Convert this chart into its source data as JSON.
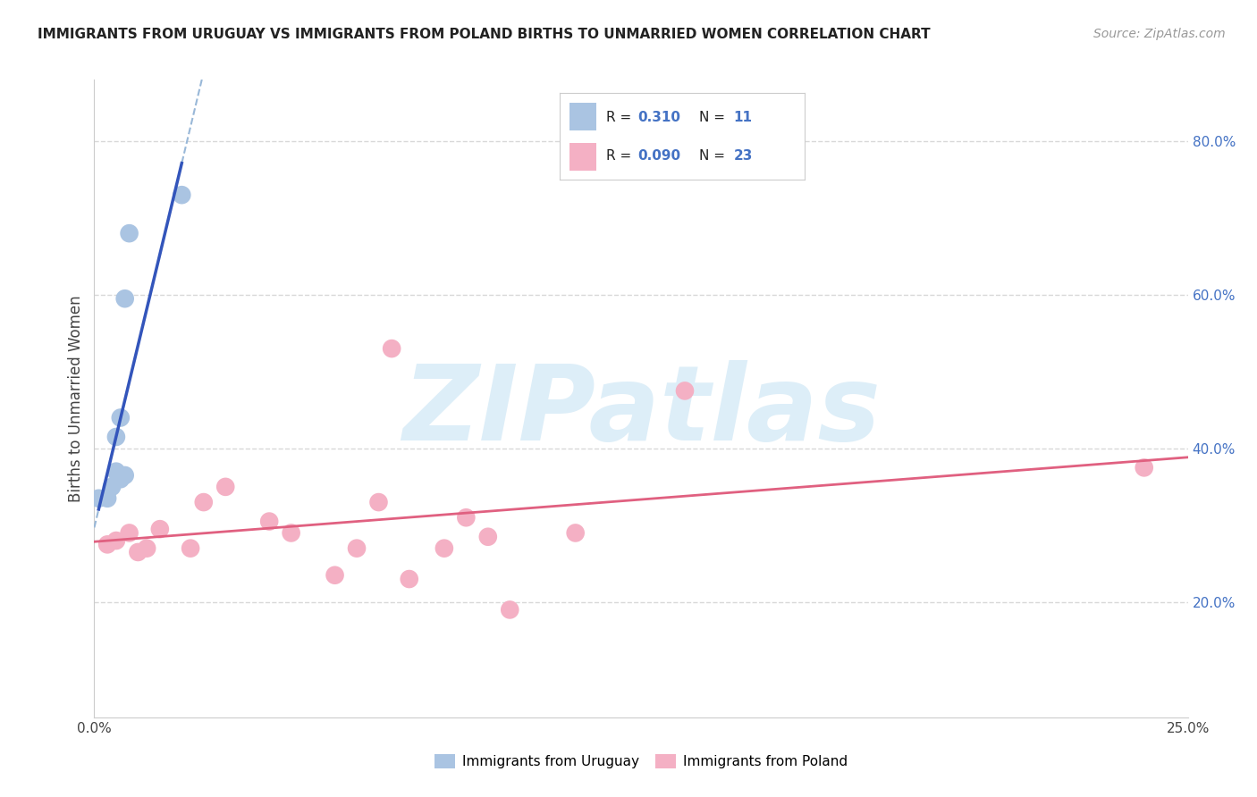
{
  "title": "IMMIGRANTS FROM URUGUAY VS IMMIGRANTS FROM POLAND BIRTHS TO UNMARRIED WOMEN CORRELATION CHART",
  "source": "Source: ZipAtlas.com",
  "ylabel": "Births to Unmarried Women",
  "xlim": [
    0.0,
    0.25
  ],
  "ylim": [
    0.05,
    0.88
  ],
  "yticks_right": [
    0.2,
    0.4,
    0.6,
    0.8
  ],
  "ytick_labels_right": [
    "20.0%",
    "40.0%",
    "60.0%",
    "80.0%"
  ],
  "uruguay_color": "#aac4e2",
  "uruguay_line_color": "#3355bb",
  "uruguay_dash_color": "#99b8d8",
  "poland_color": "#f4b0c4",
  "poland_line_color": "#e06080",
  "watermark_text": "ZIPatlas",
  "watermark_color": "#ddeef8",
  "legend_r1_label": "R = ",
  "legend_r1_val": "0.310",
  "legend_n1_label": "N = ",
  "legend_n1_val": "11",
  "legend_r2_label": "R = ",
  "legend_r2_val": "0.090",
  "legend_n2_label": "N = ",
  "legend_n2_val": "23",
  "uruguay_x": [
    0.001,
    0.003,
    0.004,
    0.005,
    0.005,
    0.006,
    0.006,
    0.007,
    0.007,
    0.008,
    0.02
  ],
  "uruguay_y": [
    0.335,
    0.335,
    0.35,
    0.415,
    0.37,
    0.44,
    0.36,
    0.595,
    0.365,
    0.68,
    0.73
  ],
  "poland_x": [
    0.003,
    0.005,
    0.008,
    0.01,
    0.012,
    0.015,
    0.022,
    0.025,
    0.03,
    0.04,
    0.045,
    0.055,
    0.06,
    0.065,
    0.068,
    0.072,
    0.08,
    0.085,
    0.09,
    0.095,
    0.11,
    0.135,
    0.24
  ],
  "poland_y": [
    0.275,
    0.28,
    0.29,
    0.265,
    0.27,
    0.295,
    0.27,
    0.33,
    0.35,
    0.305,
    0.29,
    0.235,
    0.27,
    0.33,
    0.53,
    0.23,
    0.27,
    0.31,
    0.285,
    0.19,
    0.29,
    0.475,
    0.375
  ],
  "background_color": "#ffffff",
  "grid_color": "#d8d8d8"
}
